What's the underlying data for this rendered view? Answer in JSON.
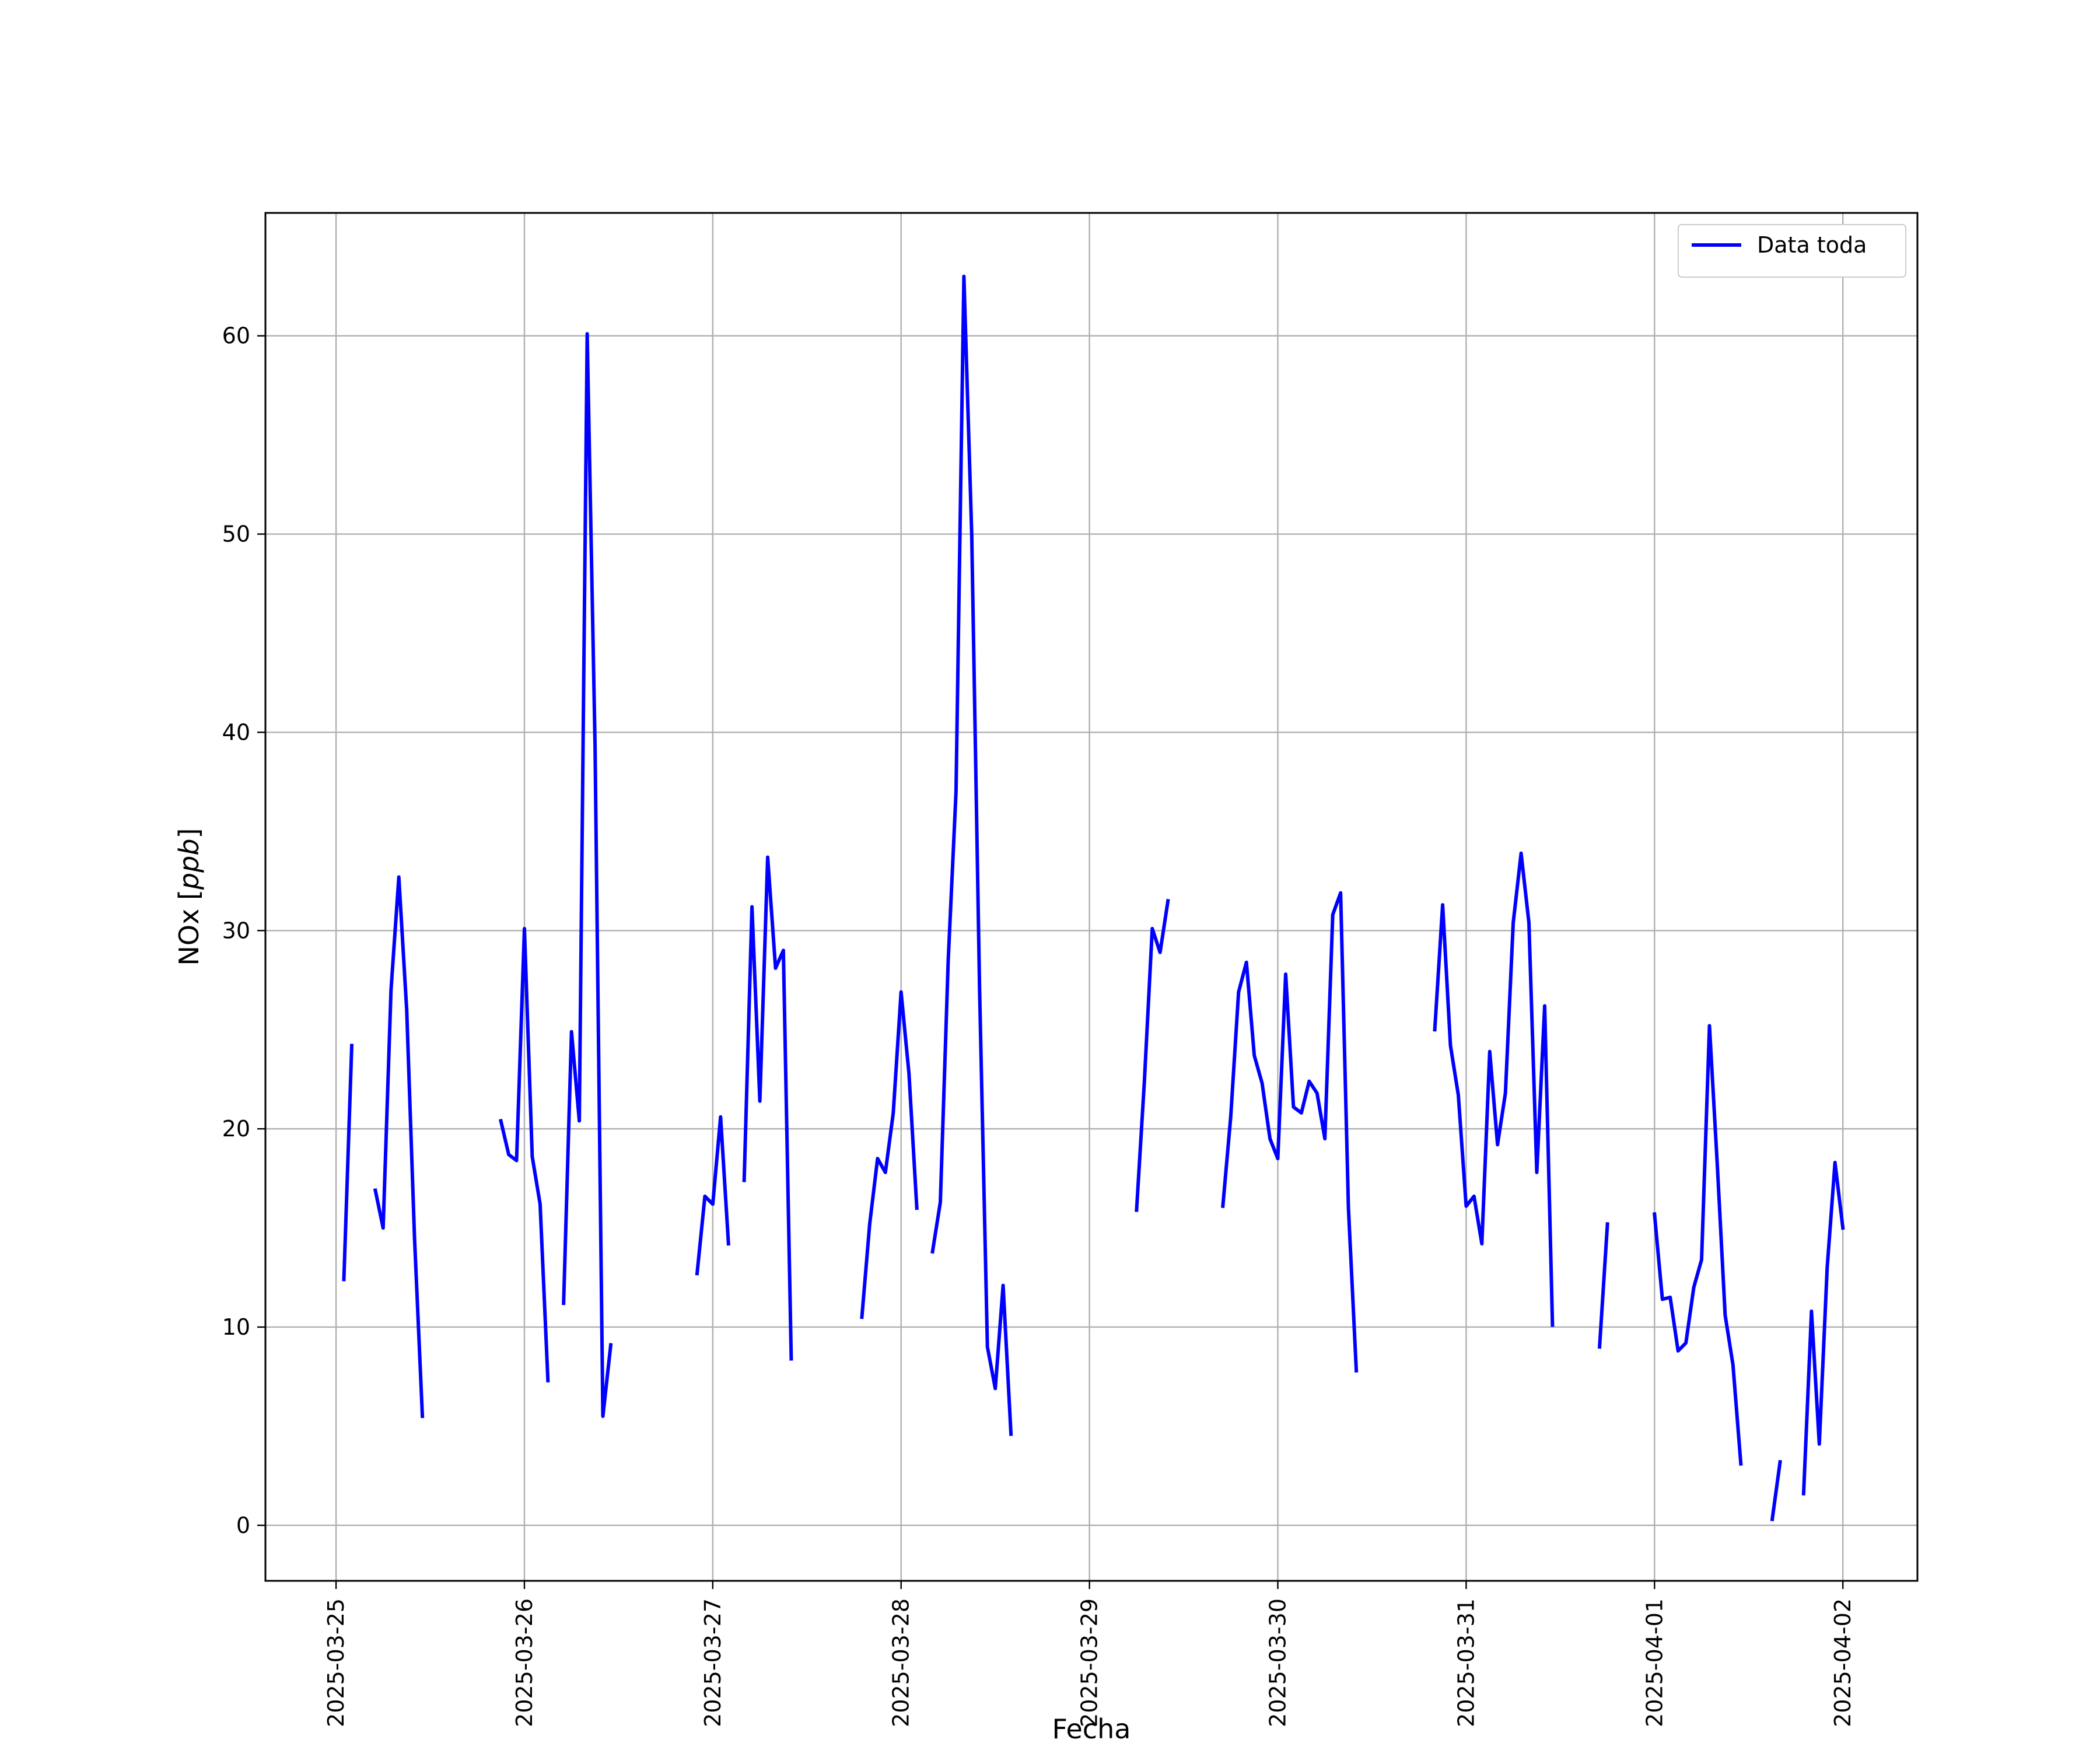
{
  "chart_data": {
    "type": "line",
    "title": "",
    "xlabel": "Fecha",
    "ylabel": "NOx [ppb]",
    "ylabel_parts": {
      "main": "NOx ",
      "bracket_open": "[",
      "unit": "ppb",
      "bracket_close": "]"
    },
    "x_axis_type": "date",
    "xlim": [
      "2025-03-24 15:00",
      "2025-04-02 09:30"
    ],
    "ylim": [
      -2.8,
      66.2
    ],
    "x_ticks": [
      "2025-03-25",
      "2025-03-26",
      "2025-03-27",
      "2025-03-28",
      "2025-03-29",
      "2025-03-30",
      "2025-03-31",
      "2025-04-01",
      "2025-04-02"
    ],
    "y_ticks": [
      0,
      10,
      20,
      30,
      40,
      50,
      60
    ],
    "grid": true,
    "legend_position": "top-right",
    "color": "#0000ff",
    "series": [
      {
        "name": "Data toda",
        "segments": [
          [
            [
              "2025-03-25 01:00",
              12.4
            ],
            [
              "2025-03-25 02:00",
              24.2
            ]
          ],
          [
            [
              "2025-03-25 05:00",
              16.9
            ],
            [
              "2025-03-25 06:00",
              15.0
            ],
            [
              "2025-03-25 07:00",
              27.0
            ],
            [
              "2025-03-25 08:00",
              32.7
            ],
            [
              "2025-03-25 09:00",
              26.0
            ],
            [
              "2025-03-25 10:00",
              14.5
            ],
            [
              "2025-03-25 11:00",
              5.5
            ]
          ],
          [
            [
              "2025-03-25 21:00",
              20.4
            ],
            [
              "2025-03-25 22:00",
              18.7
            ],
            [
              "2025-03-25 23:00",
              18.4
            ],
            [
              "2025-03-26 00:00",
              30.1
            ],
            [
              "2025-03-26 01:00",
              18.6
            ],
            [
              "2025-03-26 02:00",
              16.2
            ],
            [
              "2025-03-26 03:00",
              7.3
            ]
          ],
          [
            [
              "2025-03-26 05:00",
              11.2
            ],
            [
              "2025-03-26 06:00",
              24.9
            ],
            [
              "2025-03-26 07:00",
              20.4
            ],
            [
              "2025-03-26 08:00",
              60.1
            ],
            [
              "2025-03-26 09:00",
              39.3
            ],
            [
              "2025-03-26 10:00",
              5.5
            ],
            [
              "2025-03-26 11:00",
              9.1
            ]
          ],
          [
            [
              "2025-03-26 22:00",
              12.7
            ],
            [
              "2025-03-26 23:00",
              16.6
            ],
            [
              "2025-03-27 00:00",
              16.2
            ],
            [
              "2025-03-27 01:00",
              20.6
            ],
            [
              "2025-03-27 02:00",
              14.2
            ]
          ],
          [
            [
              "2025-03-27 04:00",
              17.4
            ],
            [
              "2025-03-27 05:00",
              31.2
            ],
            [
              "2025-03-27 06:00",
              21.4
            ],
            [
              "2025-03-27 07:00",
              33.7
            ],
            [
              "2025-03-27 08:00",
              28.1
            ],
            [
              "2025-03-27 09:00",
              29.0
            ],
            [
              "2025-03-27 10:00",
              8.4
            ]
          ],
          [
            [
              "2025-03-27 19:00",
              10.5
            ],
            [
              "2025-03-27 20:00",
              15.2
            ],
            [
              "2025-03-27 21:00",
              18.5
            ],
            [
              "2025-03-27 22:00",
              17.8
            ],
            [
              "2025-03-27 23:00",
              20.8
            ],
            [
              "2025-03-28 00:00",
              26.9
            ],
            [
              "2025-03-28 01:00",
              22.8
            ],
            [
              "2025-03-28 02:00",
              16.0
            ]
          ],
          [
            [
              "2025-03-28 04:00",
              13.8
            ],
            [
              "2025-03-28 05:00",
              16.3
            ],
            [
              "2025-03-28 06:00",
              28.5
            ],
            [
              "2025-03-28 07:00",
              37.0
            ],
            [
              "2025-03-28 08:00",
              63.0
            ],
            [
              "2025-03-28 09:00",
              50.0
            ],
            [
              "2025-03-28 10:00",
              27.0
            ],
            [
              "2025-03-28 11:00",
              9.0
            ],
            [
              "2025-03-28 12:00",
              6.9
            ],
            [
              "2025-03-28 13:00",
              12.1
            ],
            [
              "2025-03-28 14:00",
              4.6
            ]
          ],
          [
            [
              "2025-03-29 06:00",
              15.9
            ],
            [
              "2025-03-29 07:00",
              22.4
            ],
            [
              "2025-03-29 08:00",
              30.1
            ],
            [
              "2025-03-29 09:00",
              28.9
            ],
            [
              "2025-03-29 10:00",
              31.5
            ]
          ],
          [
            [
              "2025-03-29 17:00",
              16.1
            ],
            [
              "2025-03-29 18:00",
              20.6
            ],
            [
              "2025-03-29 19:00",
              26.9
            ],
            [
              "2025-03-29 20:00",
              28.4
            ],
            [
              "2025-03-29 21:00",
              23.7
            ],
            [
              "2025-03-29 22:00",
              22.3
            ],
            [
              "2025-03-29 23:00",
              19.5
            ],
            [
              "2025-03-30 00:00",
              18.5
            ],
            [
              "2025-03-30 01:00",
              27.8
            ],
            [
              "2025-03-30 02:00",
              21.1
            ],
            [
              "2025-03-30 03:00",
              20.8
            ],
            [
              "2025-03-30 04:00",
              22.4
            ],
            [
              "2025-03-30 05:00",
              21.8
            ],
            [
              "2025-03-30 06:00",
              19.5
            ],
            [
              "2025-03-30 07:00",
              30.8
            ],
            [
              "2025-03-30 08:00",
              31.9
            ],
            [
              "2025-03-30 09:00",
              16.0
            ],
            [
              "2025-03-30 10:00",
              7.8
            ]
          ],
          [
            [
              "2025-03-30 20:00",
              25.0
            ],
            [
              "2025-03-30 21:00",
              31.3
            ],
            [
              "2025-03-30 22:00",
              24.2
            ],
            [
              "2025-03-30 23:00",
              21.7
            ],
            [
              "2025-03-31 00:00",
              16.1
            ],
            [
              "2025-03-31 01:00",
              16.6
            ],
            [
              "2025-03-31 02:00",
              14.2
            ],
            [
              "2025-03-31 03:00",
              23.9
            ],
            [
              "2025-03-31 04:00",
              19.2
            ],
            [
              "2025-03-31 05:00",
              21.8
            ],
            [
              "2025-03-31 06:00",
              30.4
            ],
            [
              "2025-03-31 07:00",
              33.9
            ],
            [
              "2025-03-31 08:00",
              30.4
            ],
            [
              "2025-03-31 09:00",
              17.8
            ],
            [
              "2025-03-31 10:00",
              26.2
            ],
            [
              "2025-03-31 11:00",
              10.1
            ]
          ],
          [
            [
              "2025-03-31 17:00",
              9.0
            ],
            [
              "2025-03-31 18:00",
              15.2
            ]
          ],
          [
            [
              "2025-04-01 00:00",
              15.7
            ],
            [
              "2025-04-01 01:00",
              11.4
            ],
            [
              "2025-04-01 02:00",
              11.5
            ],
            [
              "2025-04-01 03:00",
              8.8
            ],
            [
              "2025-04-01 04:00",
              9.2
            ],
            [
              "2025-04-01 05:00",
              12.0
            ],
            [
              "2025-04-01 06:00",
              13.4
            ],
            [
              "2025-04-01 07:00",
              25.2
            ],
            [
              "2025-04-01 08:00",
              18.2
            ],
            [
              "2025-04-01 09:00",
              10.6
            ],
            [
              "2025-04-01 10:00",
              8.1
            ],
            [
              "2025-04-01 11:00",
              3.1
            ]
          ],
          [
            [
              "2025-04-01 15:00",
              0.3
            ],
            [
              "2025-04-01 16:00",
              3.2
            ]
          ],
          [
            [
              "2025-04-01 19:00",
              1.6
            ],
            [
              "2025-04-01 20:00",
              10.8
            ],
            [
              "2025-04-01 21:00",
              4.1
            ],
            [
              "2025-04-01 22:00",
              13.0
            ],
            [
              "2025-04-01 23:00",
              18.3
            ],
            [
              "2025-04-02 00:00",
              15.0
            ]
          ]
        ]
      }
    ]
  }
}
